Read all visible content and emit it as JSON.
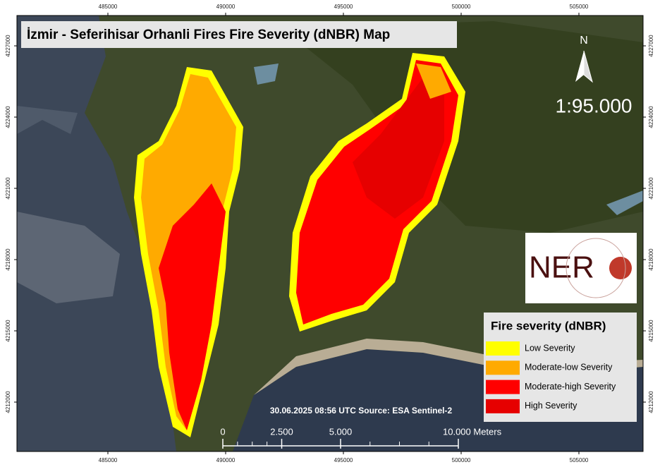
{
  "title": "İzmir - Seferihisar Orhanli Fires Fire Severity (dNBR) Map",
  "map_grid": {
    "x_labels": [
      485000,
      490000,
      495000,
      500000,
      505000
    ],
    "y_labels": [
      4227000,
      4224000,
      4221000,
      4218000,
      4215000,
      4212000
    ]
  },
  "north_label": "N",
  "scale_ratio": "1:95.000",
  "logo": "NER",
  "source": "30.06.2025 08:56 UTC Source: ESA Sentinel-2",
  "scale_bar": {
    "labels": [
      "0",
      "2.500",
      "5.000",
      "10.000 Meters"
    ]
  },
  "legend": {
    "title": "Fire severity (dNBR)",
    "items": [
      {
        "label": "Low Severity",
        "color": "#ffff00"
      },
      {
        "label": "Moderate-low Severity",
        "color": "#ffaa00"
      },
      {
        "label": "Moderate-high Severity",
        "color": "#ff0000"
      },
      {
        "label": "High Severity",
        "color": "#e60000"
      }
    ]
  }
}
